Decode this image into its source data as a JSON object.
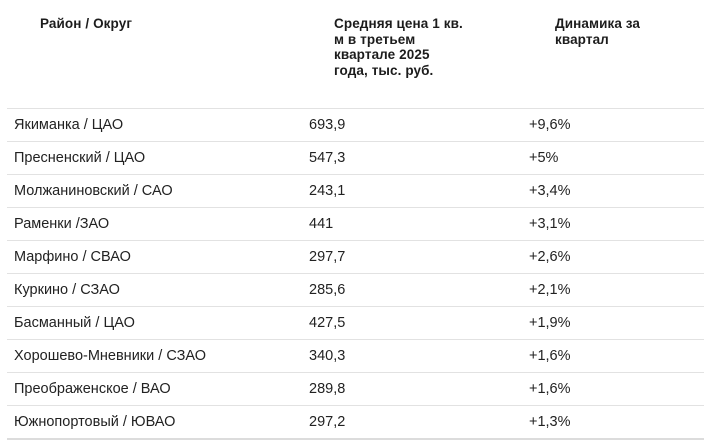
{
  "table": {
    "headers": {
      "district": "Район / Округ",
      "price": "Средняя цена 1 кв. м в третьем квартале 2025 года, тыс. руб.",
      "dynamics": "Динамика за квартал"
    },
    "header_lines": {
      "price": [
        "Средняя цена 1 кв.",
        "м в третьем",
        "квартале 2025",
        "года, тыс. руб."
      ],
      "dynamics": [
        "Динамика за",
        "квартал"
      ]
    },
    "rows": [
      {
        "district": "Якиманка / ЦАО",
        "price": "693,9",
        "dynamics": "+9,6%"
      },
      {
        "district": "Пресненский / ЦАО",
        "price": "547,3",
        "dynamics": "+5%"
      },
      {
        "district": "Молжаниновский / САО",
        "price": "243,1",
        "dynamics": "+3,4%"
      },
      {
        "district": "Раменки /ЗАО",
        "price": "441",
        "dynamics": "+3,1%"
      },
      {
        "district": "Марфино / СВАО",
        "price": "297,7",
        "dynamics": "+2,6%"
      },
      {
        "district": "Куркино / СЗАО",
        "price": "285,6",
        "dynamics": "+2,1%"
      },
      {
        "district": "Басманный / ЦАО",
        "price": "427,5",
        "dynamics": "+1,9%"
      },
      {
        "district": "Хорошево-Мневники / СЗАО",
        "price": "340,3",
        "dynamics": "+1,6%"
      },
      {
        "district": "Преображенское / ВАО",
        "price": "289,8",
        "dynamics": "+1,6%"
      },
      {
        "district": "Южнопортовый / ЮВАО",
        "price": "297,2",
        "dynamics": "+1,3%"
      }
    ]
  },
  "colors": {
    "text": "#222222",
    "header_text": "#1c1c1c",
    "divider": "#e2e2e2",
    "background": "#ffffff"
  }
}
